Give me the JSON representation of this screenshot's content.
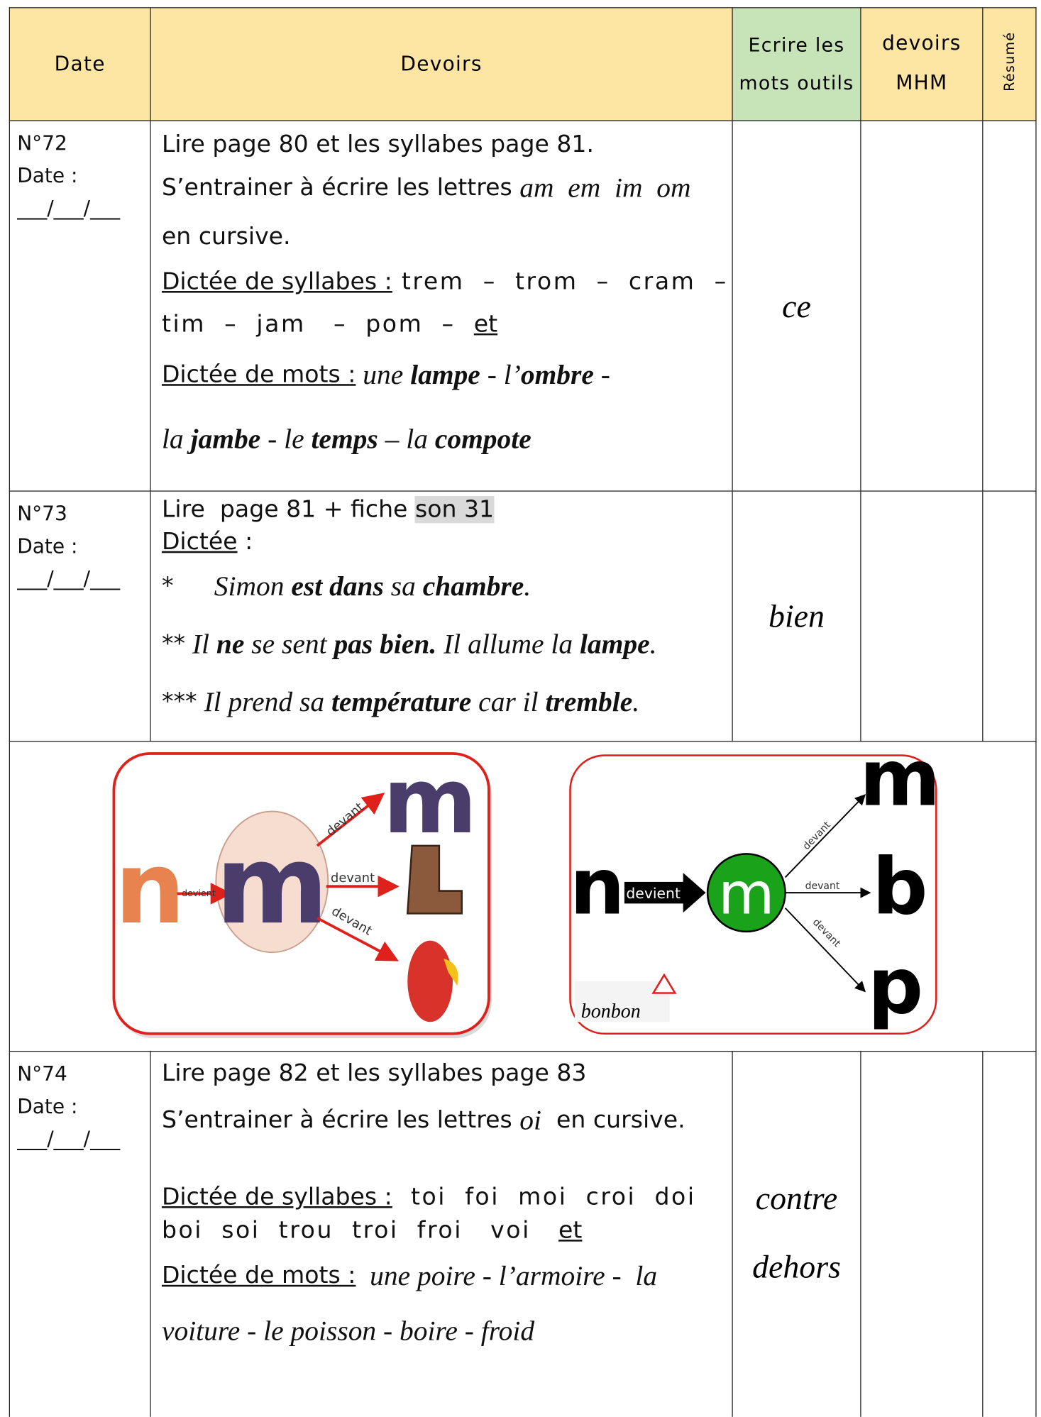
{
  "header": {
    "date": "Date",
    "devoirs": "Devoirs",
    "ecrire": "Ecrire les mots outils",
    "mhm": "devoirs MHM",
    "resume": "Résumé"
  },
  "rows": [
    {
      "number": "N°72",
      "date_label": "Date :",
      "date_blank": "___/___/___",
      "lines": [
        "Lire page 80 et les syllabes page 81.",
        [
          "S’entrainer à écrire les lettres ",
          "am  em  im  om"
        ],
        "en cursive.",
        [
          "Dictée de syllabes :",
          " trem  –  trom  –  cram  –"
        ],
        [
          "tim  –  jam   –  pom  –  ",
          "et"
        ],
        [
          "Dictée de mots :",
          " une ",
          "lampe",
          " - l’",
          "ombre",
          " -"
        ],
        [
          "la ",
          "jambe",
          " - le ",
          "temps",
          " – la ",
          "compote"
        ]
      ],
      "mots_outils": [
        "ce"
      ]
    },
    {
      "number": "N°73",
      "date_label": "Date :",
      "date_blank": "___/___/___",
      "lines": [
        [
          "Lire  page 81 + fiche ",
          "son 31"
        ],
        [
          "Dictée",
          " :"
        ],
        [
          "*",
          "Simon ",
          "est dans",
          " sa ",
          "chambre",
          "."
        ],
        [
          "**",
          " Il ",
          "ne",
          " se sent ",
          "pas bien.",
          " Il allume la ",
          "lampe",
          "."
        ],
        [
          "***",
          " Il prend sa ",
          "température",
          " car il ",
          "tremble",
          "."
        ]
      ],
      "mots_outils": [
        "bien"
      ]
    },
    {
      "number": "N°74",
      "date_label": "Date :",
      "date_blank": "___/___/___",
      "lines": [
        "Lire page 82 et les syllabes page 83",
        [
          "S’entrainer à écrire les lettres ",
          "oi",
          "  en cursive."
        ],
        [
          "Dictée de syllabes :",
          "  toi  foi  moi  croi  doi"
        ],
        [
          "boi  soi  trou  troi  froi   voi   ",
          "et"
        ],
        [
          "Dictée de mots :",
          "  une poire - l’armoire -  la"
        ],
        "voiture - le poisson - boire - froid"
      ],
      "mots_outils": [
        "contre",
        "dehors"
      ]
    }
  ],
  "images": [
    {
      "labels": [
        "n",
        "devient",
        "m",
        "devant",
        "devant",
        "devant",
        "m"
      ]
    },
    {
      "labels": [
        "n",
        "devient",
        "m",
        "devant",
        "devant",
        "devant",
        "m",
        "b",
        "p",
        "bonbon"
      ]
    }
  ]
}
